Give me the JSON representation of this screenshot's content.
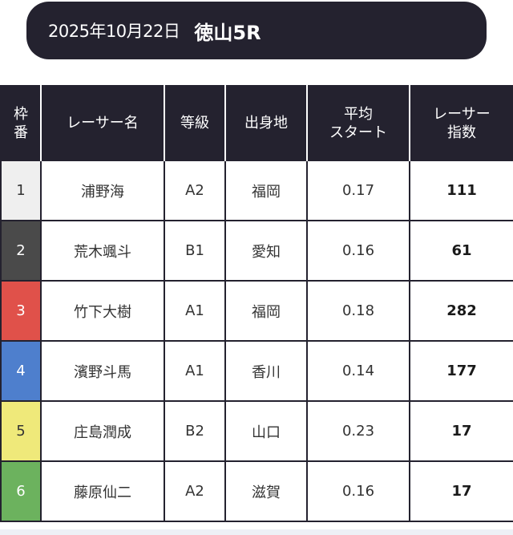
{
  "header": {
    "date": "2025年10月22日",
    "race": "徳山5R"
  },
  "table": {
    "columns": [
      {
        "line1": "枠",
        "line2": "番"
      },
      {
        "line1": "レーサー名",
        "line2": ""
      },
      {
        "line1": "等級",
        "line2": ""
      },
      {
        "line1": "出身地",
        "line2": ""
      },
      {
        "line1": "平均",
        "line2": "スタート"
      },
      {
        "line1": "レーサー",
        "line2": "指数"
      }
    ],
    "rows": [
      {
        "frame": "1",
        "name": "浦野海",
        "grade": "A2",
        "origin": "福岡",
        "start": "0.17",
        "index": "111",
        "color": "#efefef",
        "text_color": "#333333"
      },
      {
        "frame": "2",
        "name": "荒木颯斗",
        "grade": "B1",
        "origin": "愛知",
        "start": "0.16",
        "index": "61",
        "color": "#4a4a4a",
        "text_color": "#ffffff"
      },
      {
        "frame": "3",
        "name": "竹下大樹",
        "grade": "A1",
        "origin": "福岡",
        "start": "0.18",
        "index": "282",
        "color": "#e0514a",
        "text_color": "#ffffff"
      },
      {
        "frame": "4",
        "name": "濱野斗馬",
        "grade": "A1",
        "origin": "香川",
        "start": "0.14",
        "index": "177",
        "color": "#4e7fcd",
        "text_color": "#ffffff"
      },
      {
        "frame": "5",
        "name": "庄島潤成",
        "grade": "B2",
        "origin": "山口",
        "start": "0.23",
        "index": "17",
        "color": "#efe97a",
        "text_color": "#333333"
      },
      {
        "frame": "6",
        "name": "藤原仙二",
        "grade": "A2",
        "origin": "滋賀",
        "start": "0.16",
        "index": "17",
        "color": "#6cb25e",
        "text_color": "#ffffff"
      }
    ]
  }
}
